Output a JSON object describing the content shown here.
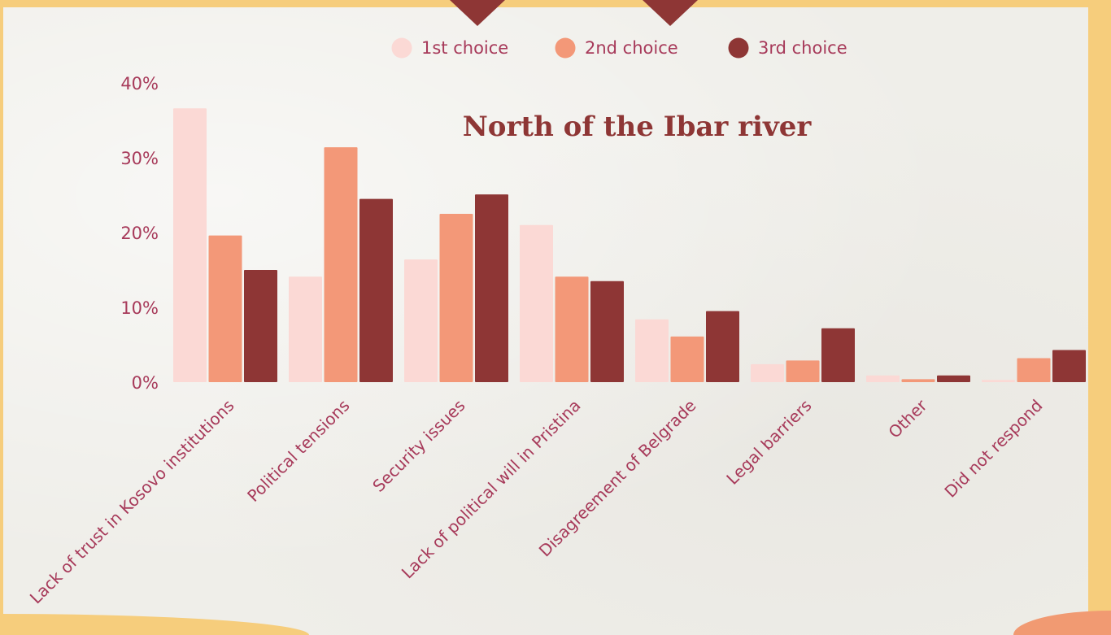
{
  "chart_data": {
    "type": "bar",
    "title": "North of the Ibar river",
    "categories": [
      "Lack of trust in Kosovo institutions",
      "Political tensions",
      "Security issues",
      "Lack of political will in Pristina",
      "Disagreement of Belgrade",
      "Legal barriers",
      "Other",
      "Did not respond"
    ],
    "series": [
      {
        "name": "1st choice",
        "color": "#fbd9d5",
        "values": [
          36.6,
          14.1,
          16.4,
          21.0,
          8.4,
          2.4,
          0.9,
          0.3
        ]
      },
      {
        "name": "2nd choice",
        "color": "#f39878",
        "values": [
          19.6,
          31.4,
          22.5,
          14.1,
          6.1,
          2.9,
          0.4,
          3.2
        ]
      },
      {
        "name": "3rd choice",
        "color": "#8e3635",
        "values": [
          15.0,
          24.5,
          25.1,
          13.5,
          9.5,
          7.2,
          0.9,
          4.3
        ]
      }
    ],
    "yticks": [
      "0%",
      "10%",
      "20%",
      "30%",
      "40%"
    ],
    "ylim": [
      0,
      40
    ],
    "legend_position": "top-center",
    "grid": false
  },
  "colors": {
    "title": "#8e3635",
    "labels": "#a73a5a",
    "frame": "#f6cd7c",
    "paper": "#efeee9"
  }
}
